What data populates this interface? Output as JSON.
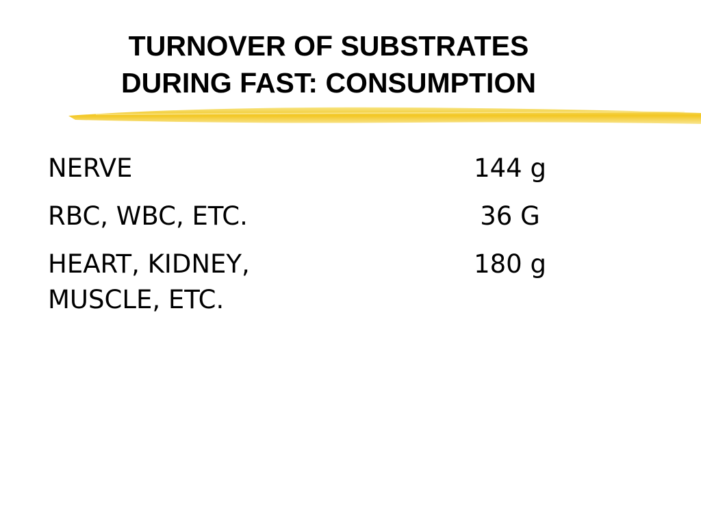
{
  "title": {
    "lines": [
      "TURNOVER OF SUBSTRATES",
      "DURING FAST: CONSUMPTION"
    ]
  },
  "table": {
    "rows": [
      {
        "label": [
          "NERVE"
        ],
        "value": "144 g"
      },
      {
        "label": [
          "RBC, WBC, ETC."
        ],
        "value": "36 G"
      },
      {
        "label": [
          "HEART, KIDNEY,",
          "MUSCLE, ETC."
        ],
        "value": "180 g"
      }
    ]
  }
}
